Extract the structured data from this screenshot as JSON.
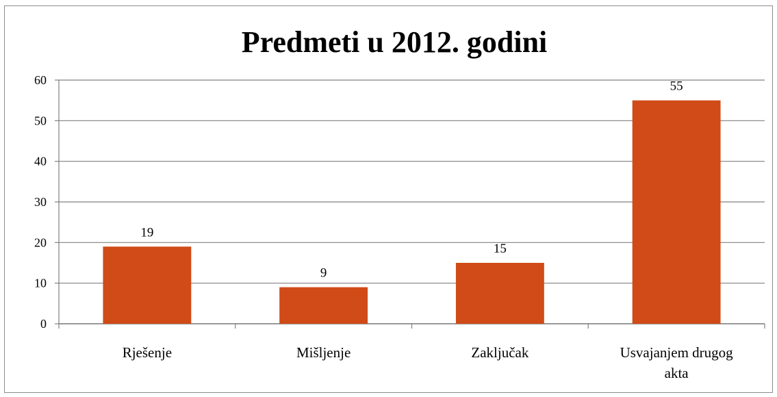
{
  "chart_data": {
    "type": "bar",
    "title": "Predmeti u 2012. godini",
    "categories": [
      [
        "Rješenje"
      ],
      [
        "Mišljenje"
      ],
      [
        "Zaključak"
      ],
      [
        "Usvajanjem drugog",
        "akta"
      ]
    ],
    "values": [
      19,
      9,
      15,
      55
    ],
    "data_labels": [
      "19",
      "9",
      "15",
      "55"
    ],
    "ylim": [
      0,
      60
    ],
    "yticks": [
      0,
      10,
      20,
      30,
      40,
      50,
      60
    ],
    "xlabel": "",
    "ylabel": "",
    "grid": true,
    "legend": "none",
    "bar_color": "#d04b17",
    "grid_color": "#808080"
  }
}
